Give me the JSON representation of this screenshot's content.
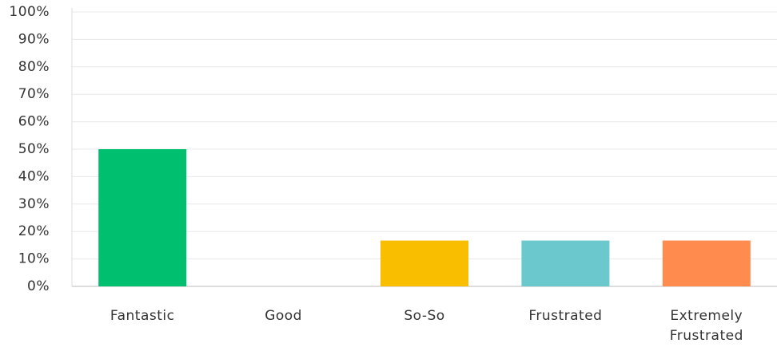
{
  "chart_data": {
    "type": "bar",
    "categories": [
      "Fantastic",
      "Good",
      "So-So",
      "Frustrated",
      "Extremely Frustrated"
    ],
    "values": [
      50,
      0,
      16.7,
      16.7,
      16.7
    ],
    "colors": [
      "#00bf6f",
      null,
      "#f9be00",
      "#6bc8cd",
      "#ff8b4f"
    ],
    "ylim": [
      0,
      100
    ],
    "yticks": [
      {
        "value": 0,
        "label": "0%"
      },
      {
        "value": 10,
        "label": "10%"
      },
      {
        "value": 20,
        "label": "20%"
      },
      {
        "value": 30,
        "label": "30%"
      },
      {
        "value": 40,
        "label": "40%"
      },
      {
        "value": 50,
        "label": "50%"
      },
      {
        "value": 60,
        "label": "60%"
      },
      {
        "value": 70,
        "label": "70%"
      },
      {
        "value": 80,
        "label": "80%"
      },
      {
        "value": 90,
        "label": "90%"
      },
      {
        "value": 100,
        "label": "100%"
      }
    ],
    "grid": true
  }
}
